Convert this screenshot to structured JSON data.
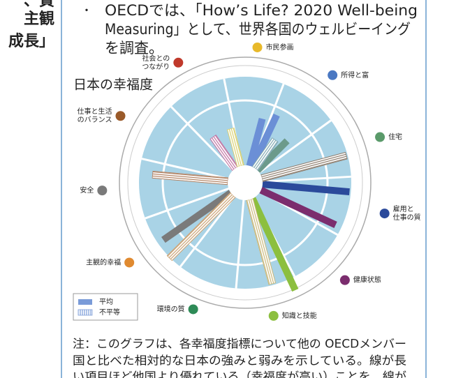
{
  "header": {
    "left_lines": [
      "、質",
      "主観",
      "成長」"
    ]
  },
  "bullet": {
    "marker": "・",
    "lines": [
      "OECDでは、「How’s Life? 2020 Well-being",
      "Measuring」として、世界各国のウェルビーイング",
      "を調査。"
    ]
  },
  "figure": {
    "title": "日本の幸福度",
    "groups": [
      {
        "label": [
          "市民参画"
        ],
        "color": "#e8b92a"
      },
      {
        "label": [
          "所得と富"
        ],
        "color": "#4a78c2"
      },
      {
        "label": [
          "住宅"
        ],
        "color": "#5a9a6a"
      },
      {
        "label": [
          "雇用と",
          "仕事の質"
        ],
        "color": "#2b4a9b"
      },
      {
        "label": [
          "健康状態"
        ],
        "color": "#7b2d6e"
      },
      {
        "label": [
          "知識と技能"
        ],
        "color": "#8cbf3f"
      },
      {
        "label": [
          "環境の質"
        ],
        "color": "#2e8b57"
      },
      {
        "label": [
          "主観的幸福"
        ],
        "color": "#e08a30"
      },
      {
        "label": [
          "安全"
        ],
        "color": "#7a7a7a"
      },
      {
        "label": [
          "仕事と生活",
          "のバランス"
        ],
        "color": "#9a5a2a"
      },
      {
        "label": [
          "社会との",
          "つながり"
        ],
        "color": "#c0392b"
      }
    ],
    "series": [
      {
        "name": "平均",
        "style": "solid",
        "color": "#7a9bd8",
        "values": [
          null,
          70,
          82,
          null,
          60,
          null,
          null,
          null,
          null,
          125,
          null,
          118,
          null,
          null,
          null,
          145,
          null,
          null,
          null,
          null,
          null,
          null,
          null,
          118,
          null,
          null,
          null,
          null,
          null,
          null,
          null,
          null,
          null,
          null,
          null,
          null
        ],
        "colors": [
          null,
          "#6b8fd6",
          "#6b8fd6",
          null,
          "#6c9a8b",
          null,
          null,
          null,
          null,
          "#2b4a9b",
          null,
          "#7b2d6e",
          null,
          null,
          null,
          "#8cbf3f",
          null,
          null,
          null,
          null,
          null,
          null,
          null,
          "#7a7a7a",
          null,
          null,
          null,
          null,
          null,
          null,
          null,
          null,
          null,
          null,
          null,
          null
        ]
      },
      {
        "name": "不平等",
        "style": "hatched",
        "color": "#7a9bd8",
        "values": [
          null,
          null,
          null,
          50,
          null,
          null,
          null,
          125,
          null,
          null,
          null,
          null,
          null,
          null,
          null,
          null,
          125,
          null,
          null,
          null,
          null,
          null,
          128,
          null,
          null,
          null,
          null,
          108,
          null,
          null,
          null,
          null,
          55,
          null,
          55,
          null
        ],
        "colors": [
          null,
          null,
          null,
          "#7fa7b0",
          null,
          null,
          null,
          "#8a7a6a",
          null,
          null,
          null,
          null,
          null,
          null,
          null,
          null,
          "#c9b87a",
          null,
          null,
          null,
          null,
          null,
          "#c9a070",
          null,
          null,
          null,
          null,
          "#b08060",
          null,
          null,
          null,
          null,
          "#c070a0",
          null,
          "#d8d070",
          null
        ]
      }
    ]
  },
  "note": {
    "lines": [
      "注：このグラフは、各幸福度指標について他の OECDメンバー",
      "国と比べた相対的な日本の強みと弱みを示している。線が長",
      "い項目ほど他国より優れている（幸福度が高い）ことを、線が"
    ]
  }
}
